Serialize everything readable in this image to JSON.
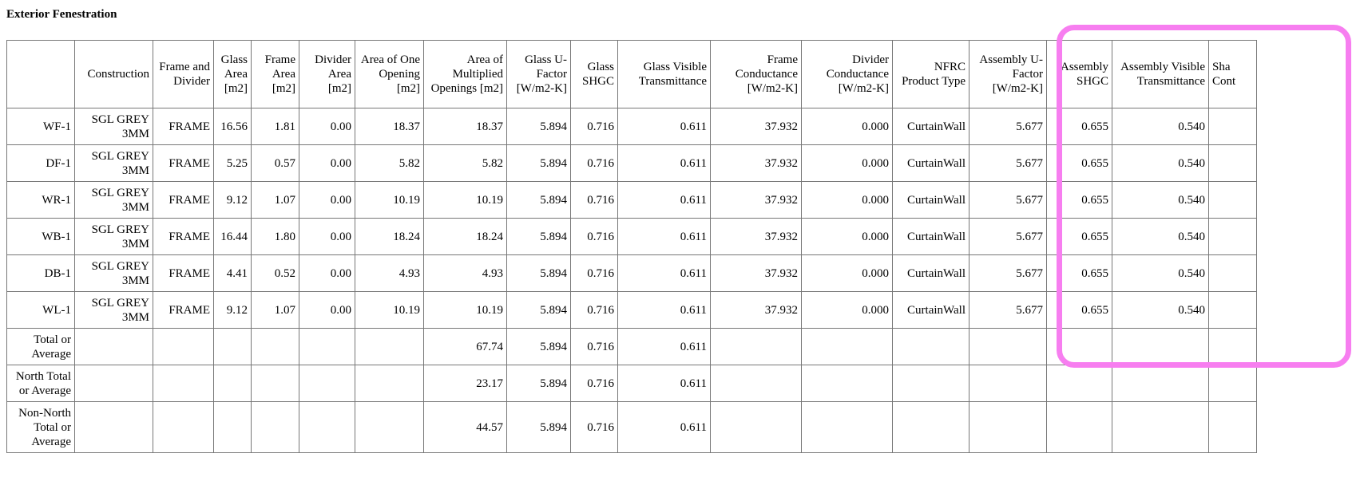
{
  "title": "Exterior Fenestration",
  "headers": [
    "",
    "Construction",
    "Frame and Divider",
    "Glass Area [m2]",
    "Frame Area [m2]",
    "Divider Area [m2]",
    "Area of One Opening [m2]",
    "Area of Multiplied Openings [m2]",
    "Glass U-Factor [W/m2-K]",
    "Glass SHGC",
    "Glass Visible Transmittance",
    "Frame Conductance [W/m2-K]",
    "Divider Conductance [W/m2-K]",
    "NFRC Product Type",
    "Assembly U-Factor [W/m2-K]",
    "Assembly SHGC",
    "Assembly Visible Transmittance",
    "Sha Cont"
  ],
  "rows": [
    [
      "WF-1",
      "SGL GREY 3MM",
      "FRAME",
      "16.56",
      "1.81",
      "0.00",
      "18.37",
      "18.37",
      "5.894",
      "0.716",
      "0.611",
      "37.932",
      "0.000",
      "CurtainWall",
      "5.677",
      "0.655",
      "0.540",
      ""
    ],
    [
      "DF-1",
      "SGL GREY 3MM",
      "FRAME",
      "5.25",
      "0.57",
      "0.00",
      "5.82",
      "5.82",
      "5.894",
      "0.716",
      "0.611",
      "37.932",
      "0.000",
      "CurtainWall",
      "5.677",
      "0.655",
      "0.540",
      ""
    ],
    [
      "WR-1",
      "SGL GREY 3MM",
      "FRAME",
      "9.12",
      "1.07",
      "0.00",
      "10.19",
      "10.19",
      "5.894",
      "0.716",
      "0.611",
      "37.932",
      "0.000",
      "CurtainWall",
      "5.677",
      "0.655",
      "0.540",
      ""
    ],
    [
      "WB-1",
      "SGL GREY 3MM",
      "FRAME",
      "16.44",
      "1.80",
      "0.00",
      "18.24",
      "18.24",
      "5.894",
      "0.716",
      "0.611",
      "37.932",
      "0.000",
      "CurtainWall",
      "5.677",
      "0.655",
      "0.540",
      ""
    ],
    [
      "DB-1",
      "SGL GREY 3MM",
      "FRAME",
      "4.41",
      "0.52",
      "0.00",
      "4.93",
      "4.93",
      "5.894",
      "0.716",
      "0.611",
      "37.932",
      "0.000",
      "CurtainWall",
      "5.677",
      "0.655",
      "0.540",
      ""
    ],
    [
      "WL-1",
      "SGL GREY 3MM",
      "FRAME",
      "9.12",
      "1.07",
      "0.00",
      "10.19",
      "10.19",
      "5.894",
      "0.716",
      "0.611",
      "37.932",
      "0.000",
      "CurtainWall",
      "5.677",
      "0.655",
      "0.540",
      ""
    ],
    [
      "Total or Average",
      "",
      "",
      "",
      "",
      "",
      "",
      "67.74",
      "5.894",
      "0.716",
      "0.611",
      "",
      "",
      "",
      "",
      "",
      "",
      ""
    ],
    [
      "North Total or Average",
      "",
      "",
      "",
      "",
      "",
      "",
      "23.17",
      "5.894",
      "0.716",
      "0.611",
      "",
      "",
      "",
      "",
      "",
      "",
      ""
    ],
    [
      "Non-North Total or Average",
      "",
      "",
      "",
      "",
      "",
      "",
      "44.57",
      "5.894",
      "0.716",
      "0.611",
      "",
      "",
      "",
      "",
      "",
      "",
      ""
    ]
  ],
  "highlight_color": "#f77ef0"
}
